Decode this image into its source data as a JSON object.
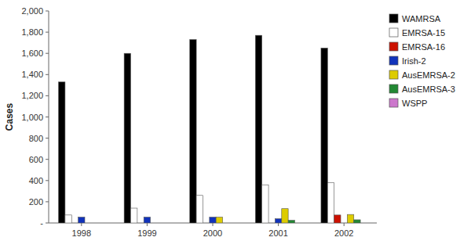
{
  "chart_data": {
    "type": "bar",
    "categories": [
      "1998",
      "1999",
      "2000",
      "2001",
      "2002"
    ],
    "series": [
      {
        "name": "WAMRSA",
        "color": "#000000",
        "values": [
          1330,
          1600,
          1730,
          1770,
          1650
        ]
      },
      {
        "name": "EMRSA-15",
        "color": "#ffffff",
        "values": [
          75,
          140,
          260,
          360,
          380
        ]
      },
      {
        "name": "EMRSA-16",
        "color": "#cc1100",
        "values": [
          0,
          0,
          0,
          0,
          75
        ]
      },
      {
        "name": "Irish-2",
        "color": "#1133bb",
        "values": [
          55,
          55,
          55,
          40,
          0
        ]
      },
      {
        "name": "AusEMRSA-2",
        "color": "#ddcc00",
        "values": [
          0,
          0,
          55,
          135,
          80
        ]
      },
      {
        "name": "AusEMRSA-3",
        "color": "#228833",
        "values": [
          0,
          0,
          0,
          25,
          30
        ]
      },
      {
        "name": "WSPP",
        "color": "#cc77cc",
        "values": [
          0,
          0,
          0,
          0,
          0
        ]
      }
    ],
    "ylabel": "Cases",
    "ylim": [
      0,
      2000
    ],
    "yticks": [
      {
        "value": 0,
        "label": "-"
      },
      200,
      400,
      600,
      800,
      {
        "value": 1000,
        "label": "1,000"
      },
      {
        "value": 1200,
        "label": "1,200"
      },
      {
        "value": 1400,
        "label": "1,400"
      },
      {
        "value": 1600,
        "label": "1,600"
      },
      {
        "value": 1800,
        "label": "1,800"
      },
      {
        "value": 2000,
        "label": "2,000"
      }
    ],
    "grid": false,
    "legend": "right"
  }
}
